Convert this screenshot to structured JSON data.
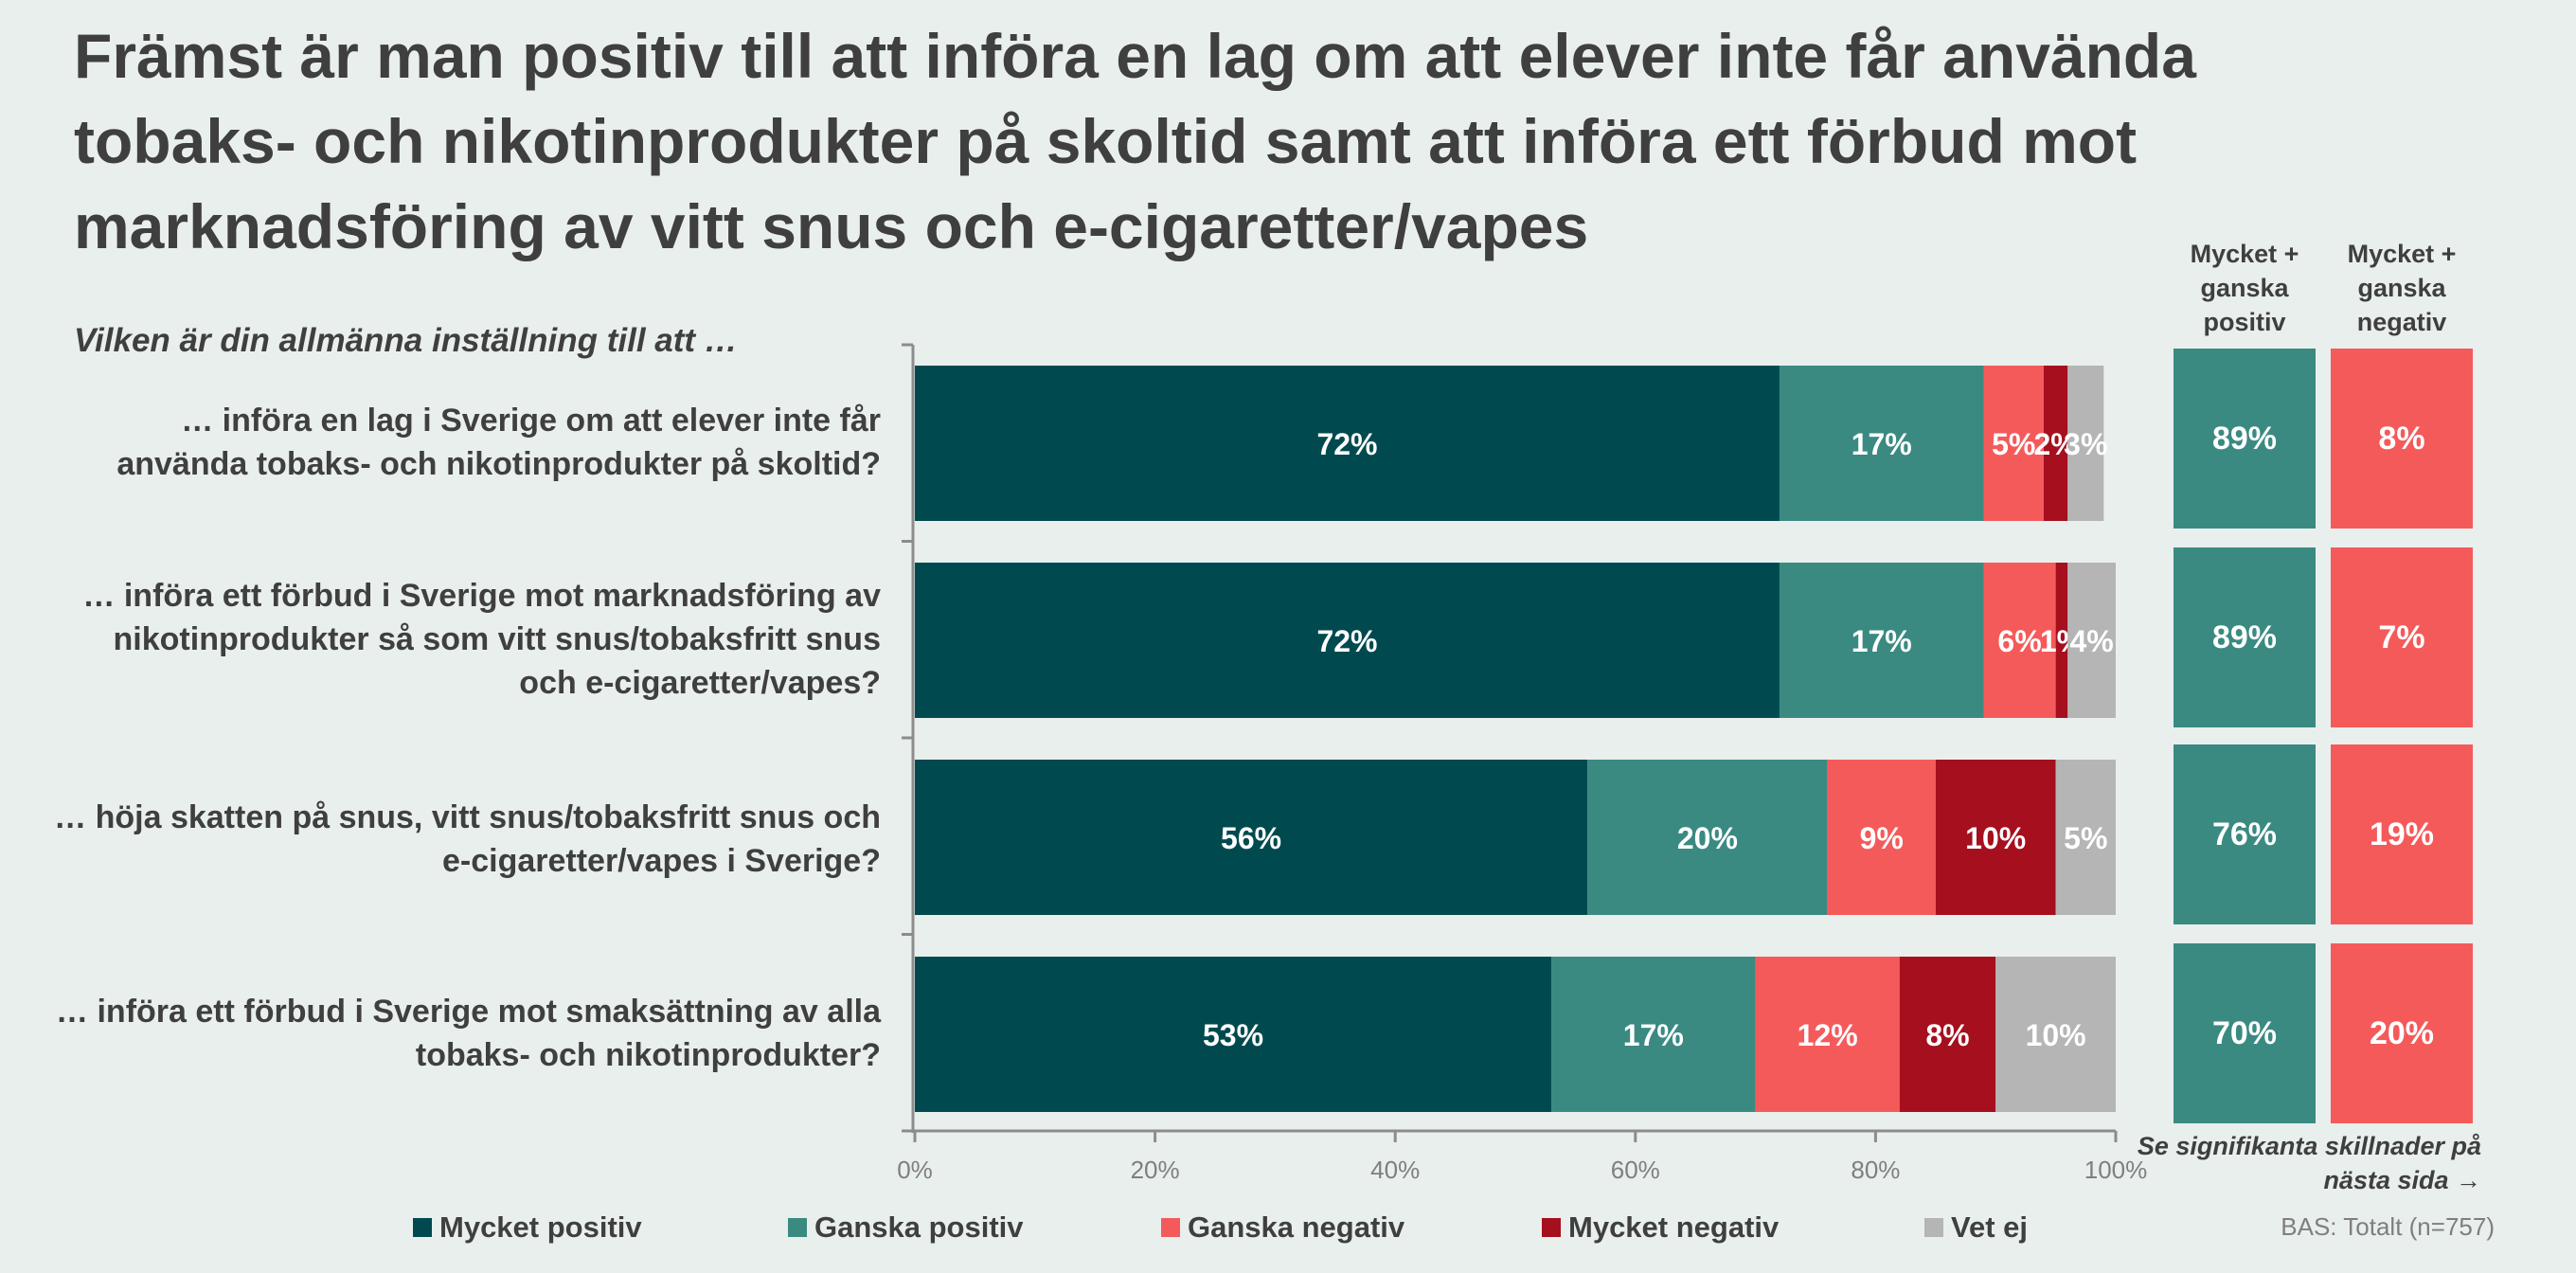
{
  "title": "Främst är man positiv till att införa en lag om att elever inte får använda tobaks- och nikotinprodukter på skoltid samt att införa ett förbud mot marknadsföring av vitt snus och e-cigaretter/vapes",
  "question": "Vilken är din allmänna inställning till att …",
  "summary": {
    "positive_header": "Mycket + ganska positiv",
    "negative_header": "Mycket + ganska negativ",
    "positive_values": [
      "89%",
      "89%",
      "76%",
      "70%"
    ],
    "negative_values": [
      "8%",
      "7%",
      "19%",
      "20%"
    ],
    "positive_color": "#3a8a82",
    "negative_color": "#f55a5b"
  },
  "note": "Se signifikanta skillnader på nästa sida →",
  "base_text": "BAS: Totalt (n=757)",
  "chart_data": {
    "type": "bar",
    "orientation": "horizontal",
    "stacked": true,
    "categories": [
      "… införa en lag i Sverige om att elever inte får använda tobaks- och nikotinprodukter på skoltid?",
      "… införa ett förbud i Sverige mot marknadsföring av nikotinprodukter så som vitt snus/tobaksfritt snus och e-cigaretter/vapes?",
      "… höja skatten på snus, vitt snus/tobaksfritt snus och e-cigaretter/vapes i Sverige?",
      "… införa ett förbud i Sverige mot smaksättning av alla tobaks- och nikotinprodukter?"
    ],
    "series": [
      {
        "name": "Mycket positiv",
        "color": "#004a4f",
        "values": [
          72,
          72,
          56,
          53
        ]
      },
      {
        "name": "Ganska positiv",
        "color": "#3a8a82",
        "values": [
          17,
          17,
          20,
          17
        ]
      },
      {
        "name": "Ganska negativ",
        "color": "#f55a5b",
        "values": [
          5,
          6,
          9,
          12
        ]
      },
      {
        "name": "Mycket negativ",
        "color": "#a50f1e",
        "values": [
          2,
          1,
          10,
          8
        ]
      },
      {
        "name": "Vet ej",
        "color": "#b5b5b5",
        "values": [
          3,
          4,
          5,
          10
        ]
      }
    ],
    "xlim": [
      0,
      100
    ],
    "xticks": [
      "0%",
      "20%",
      "40%",
      "60%",
      "80%",
      "100%"
    ],
    "grid": false,
    "legend": "bottom"
  }
}
